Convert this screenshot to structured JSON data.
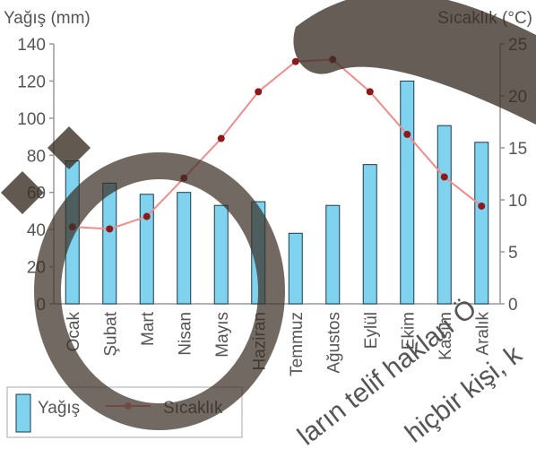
{
  "chart_data": {
    "type": "bar+line",
    "categories": [
      "Ocak",
      "Şubat",
      "Mart",
      "Nisan",
      "Mayıs",
      "Haziran",
      "Temmuz",
      "Ağustos",
      "Eylül",
      "Ekim",
      "Kasım",
      "Aralık"
    ],
    "series": [
      {
        "name": "Yağış",
        "type": "bar",
        "axis": "left",
        "values": [
          77,
          65,
          59,
          60,
          53,
          55,
          38,
          53,
          75,
          120,
          96,
          87
        ]
      },
      {
        "name": "Sıcaklık",
        "type": "line",
        "axis": "right",
        "values": [
          7.4,
          7.2,
          8.4,
          12.1,
          15.9,
          20.4,
          23.3,
          23.5,
          20.4,
          16.3,
          12.2,
          9.4
        ]
      }
    ],
    "ylabel_left": "Yağış (mm)",
    "ylabel_right": "Sıcaklık (°C)",
    "ylim_left": [
      0,
      140
    ],
    "ylim_right": [
      0,
      25
    ],
    "yticks_left": [
      "0",
      "20",
      "40",
      "60",
      "80",
      "100",
      "120",
      "140"
    ],
    "yticks_right": [
      "0",
      "5",
      "10",
      "15",
      "20",
      "25"
    ],
    "grid": false,
    "legend_placement": "bottom-left",
    "colors": {
      "bar": "#7fd3ef",
      "bar_edge": "#1a3a4a",
      "line": "#f08c8c",
      "axis": "#999999",
      "overlay": "#3b3026"
    },
    "watermark_lines": [
      "ların telif hakları Ö",
      "hiçbir kişi, k"
    ]
  }
}
